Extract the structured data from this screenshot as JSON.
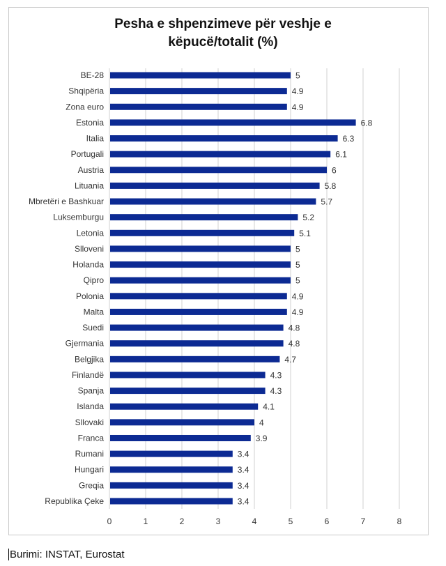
{
  "chart_data": {
    "type": "bar",
    "orientation": "horizontal",
    "title": "Pesha e shpenzimeve për veshje e këpucë/totalit (%)",
    "title_lines": [
      "Pesha e shpenzimeve për veshje e",
      "këpucë/totalit (%)"
    ],
    "categories": [
      "BE-28",
      "Shqipëria",
      "Zona euro",
      "Estonia",
      "Italia",
      "Portugali",
      "Austria",
      "Lituania",
      "Mbretëri e Bashkuar",
      "Luksemburgu",
      "Letonia",
      "Slloveni",
      "Holanda",
      "Qipro",
      "Polonia",
      "Malta",
      "Suedi",
      "Gjermania",
      "Belgjika",
      "Finlandë",
      "Spanja",
      "Islanda",
      "Sllovaki",
      "Franca",
      "Rumani",
      "Hungari",
      "Greqia",
      "Republika Çeke"
    ],
    "values": [
      5,
      4.9,
      4.9,
      6.8,
      6.3,
      6.1,
      6,
      5.8,
      5.7,
      5.2,
      5.1,
      5,
      5,
      5,
      4.9,
      4.9,
      4.8,
      4.8,
      4.7,
      4.3,
      4.3,
      4.1,
      4,
      3.9,
      3.4,
      3.4,
      3.4,
      3.4
    ],
    "xlim": [
      0,
      8
    ],
    "xticks": [
      0,
      1,
      2,
      3,
      4,
      5,
      6,
      7,
      8
    ],
    "grid": true,
    "bar_color": "#0c2a93",
    "xlabel": "",
    "ylabel": ""
  },
  "caption": "Burimi: INSTAT, Eurostat"
}
